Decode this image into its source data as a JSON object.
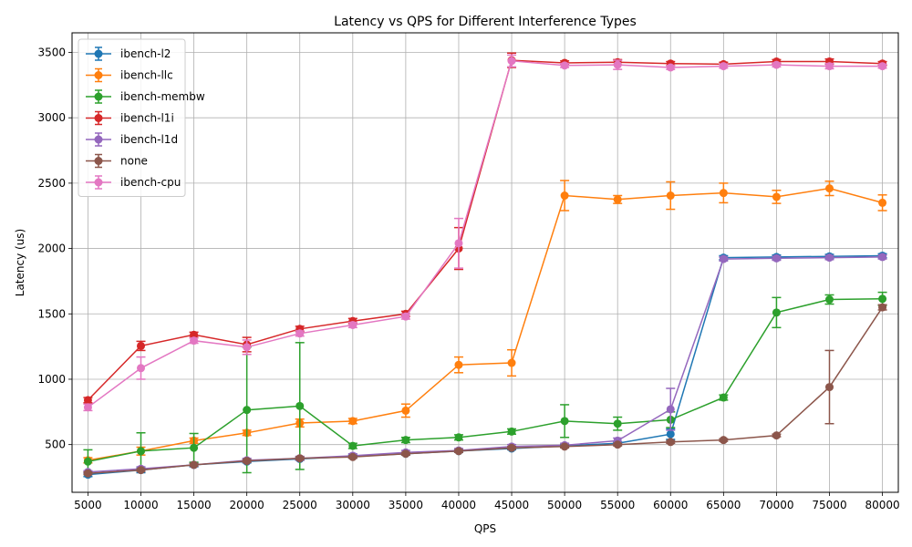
{
  "chart_data": {
    "type": "line",
    "title": "Latency vs QPS for Different Interference Types",
    "xlabel": "QPS",
    "ylabel": "Latency (us)",
    "x": [
      5000,
      10000,
      15000,
      20000,
      25000,
      30000,
      35000,
      40000,
      45000,
      50000,
      55000,
      60000,
      65000,
      70000,
      75000,
      80000
    ],
    "xlim": [
      3500,
      81500
    ],
    "ylim": [
      135,
      3650
    ],
    "yticks": [
      500,
      1000,
      1500,
      2000,
      2500,
      3000,
      3500
    ],
    "grid": true,
    "legend_position": "top-left",
    "error_bars": true,
    "series": [
      {
        "name": "ibench-l2",
        "color": "#1f77b4",
        "values": [
          270,
          305,
          345,
          370,
          390,
          410,
          430,
          450,
          470,
          490,
          510,
          580,
          1930,
          1935,
          1940,
          1945
        ],
        "errors": [
          15,
          20,
          15,
          10,
          10,
          10,
          10,
          10,
          10,
          10,
          10,
          40,
          15,
          15,
          15,
          15
        ]
      },
      {
        "name": "ibench-llc",
        "color": "#ff7f0e",
        "values": [
          380,
          450,
          530,
          590,
          665,
          680,
          760,
          1110,
          1125,
          2405,
          2375,
          2405,
          2425,
          2395,
          2460,
          2350
        ],
        "errors": [
          20,
          30,
          20,
          20,
          30,
          20,
          50,
          60,
          100,
          115,
          30,
          105,
          75,
          50,
          55,
          60
        ]
      },
      {
        "name": "ibench-membw",
        "color": "#2ca02c",
        "values": [
          370,
          450,
          475,
          765,
          795,
          490,
          535,
          555,
          600,
          680,
          660,
          690,
          860,
          1510,
          1610,
          1615
        ],
        "errors": [
          90,
          140,
          110,
          480,
          485,
          20,
          20,
          20,
          20,
          125,
          50,
          60,
          20,
          115,
          35,
          50
        ]
      },
      {
        "name": "ibench-l1i",
        "color": "#d62728",
        "values": [
          840,
          1255,
          1340,
          1265,
          1385,
          1445,
          1500,
          2000,
          3440,
          3420,
          3425,
          3415,
          3410,
          3430,
          3430,
          3415
        ],
        "errors": [
          20,
          35,
          20,
          55,
          20,
          20,
          20,
          160,
          55,
          15,
          20,
          15,
          15,
          15,
          20,
          15
        ]
      },
      {
        "name": "ibench-l1d",
        "color": "#9467bd",
        "values": [
          290,
          315,
          345,
          380,
          395,
          415,
          440,
          455,
          485,
          495,
          530,
          770,
          1920,
          1925,
          1930,
          1935
        ],
        "errors": [
          10,
          15,
          10,
          15,
          15,
          15,
          15,
          15,
          15,
          15,
          20,
          160,
          15,
          15,
          15,
          15
        ]
      },
      {
        "name": "none",
        "color": "#8c564b",
        "values": [
          280,
          305,
          345,
          375,
          395,
          405,
          430,
          450,
          475,
          485,
          500,
          520,
          535,
          570,
          940,
          1550
        ],
        "errors": [
          10,
          10,
          10,
          10,
          10,
          10,
          10,
          10,
          10,
          10,
          10,
          10,
          10,
          10,
          280,
          20
        ]
      },
      {
        "name": "ibench-cpu",
        "color": "#e377c2",
        "values": [
          785,
          1085,
          1295,
          1245,
          1350,
          1415,
          1480,
          2040,
          3435,
          3400,
          3405,
          3385,
          3395,
          3405,
          3395,
          3395
        ],
        "errors": [
          25,
          85,
          20,
          55,
          20,
          20,
          20,
          190,
          45,
          15,
          35,
          15,
          15,
          15,
          20,
          15
        ]
      }
    ]
  }
}
